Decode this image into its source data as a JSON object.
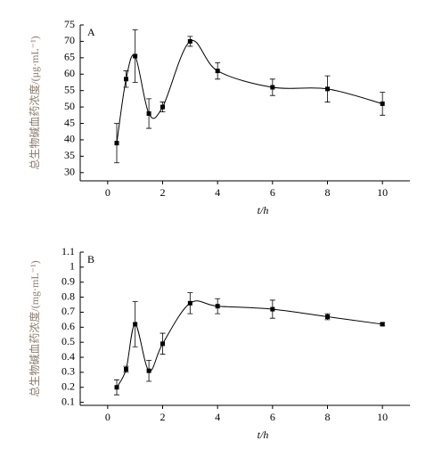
{
  "chart_data": [
    {
      "type": "line",
      "title": "A",
      "x_label": "t/h",
      "y_label": "总生物碱血药浓度/(μg·mL⁻¹)",
      "xlim": [
        -1,
        11
      ],
      "xticks": [
        0,
        2,
        4,
        6,
        8,
        10
      ],
      "ylim": [
        27.5,
        75
      ],
      "yticks": [
        30,
        35,
        40,
        45,
        50,
        55,
        60,
        65,
        70,
        75
      ],
      "series": [
        {
          "color": "#000000",
          "x": [
            0.33,
            0.67,
            1,
            1.5,
            2,
            3,
            4,
            6,
            8,
            10
          ],
          "values": [
            39,
            58.5,
            65.5,
            48,
            50,
            70,
            61,
            56,
            55.5,
            51
          ],
          "errors": [
            6,
            2.5,
            8,
            4.5,
            1.5,
            1.5,
            2.5,
            2.5,
            4,
            3.5
          ]
        }
      ]
    },
    {
      "type": "line",
      "title": "B",
      "x_label": "t/h",
      "y_label": "总生物碱血药浓度/(mg·mL⁻¹)",
      "xlim": [
        -1,
        11
      ],
      "xticks": [
        0,
        2,
        4,
        6,
        8,
        10
      ],
      "ylim": [
        0.08,
        1.1
      ],
      "yticks": [
        0.1,
        0.2,
        0.3,
        0.4,
        0.5,
        0.6,
        0.7,
        0.8,
        0.9,
        1,
        1.1
      ],
      "series": [
        {
          "color": "#000000",
          "x": [
            0.33,
            0.67,
            1,
            1.5,
            2,
            3,
            4,
            6,
            8,
            10
          ],
          "values": [
            0.2,
            0.32,
            0.62,
            0.31,
            0.49,
            0.76,
            0.74,
            0.72,
            0.67,
            0.62
          ],
          "errors": [
            0.05,
            0.02,
            0.15,
            0.07,
            0.07,
            0.07,
            0.05,
            0.06,
            0.02,
            0.01
          ]
        }
      ]
    }
  ]
}
